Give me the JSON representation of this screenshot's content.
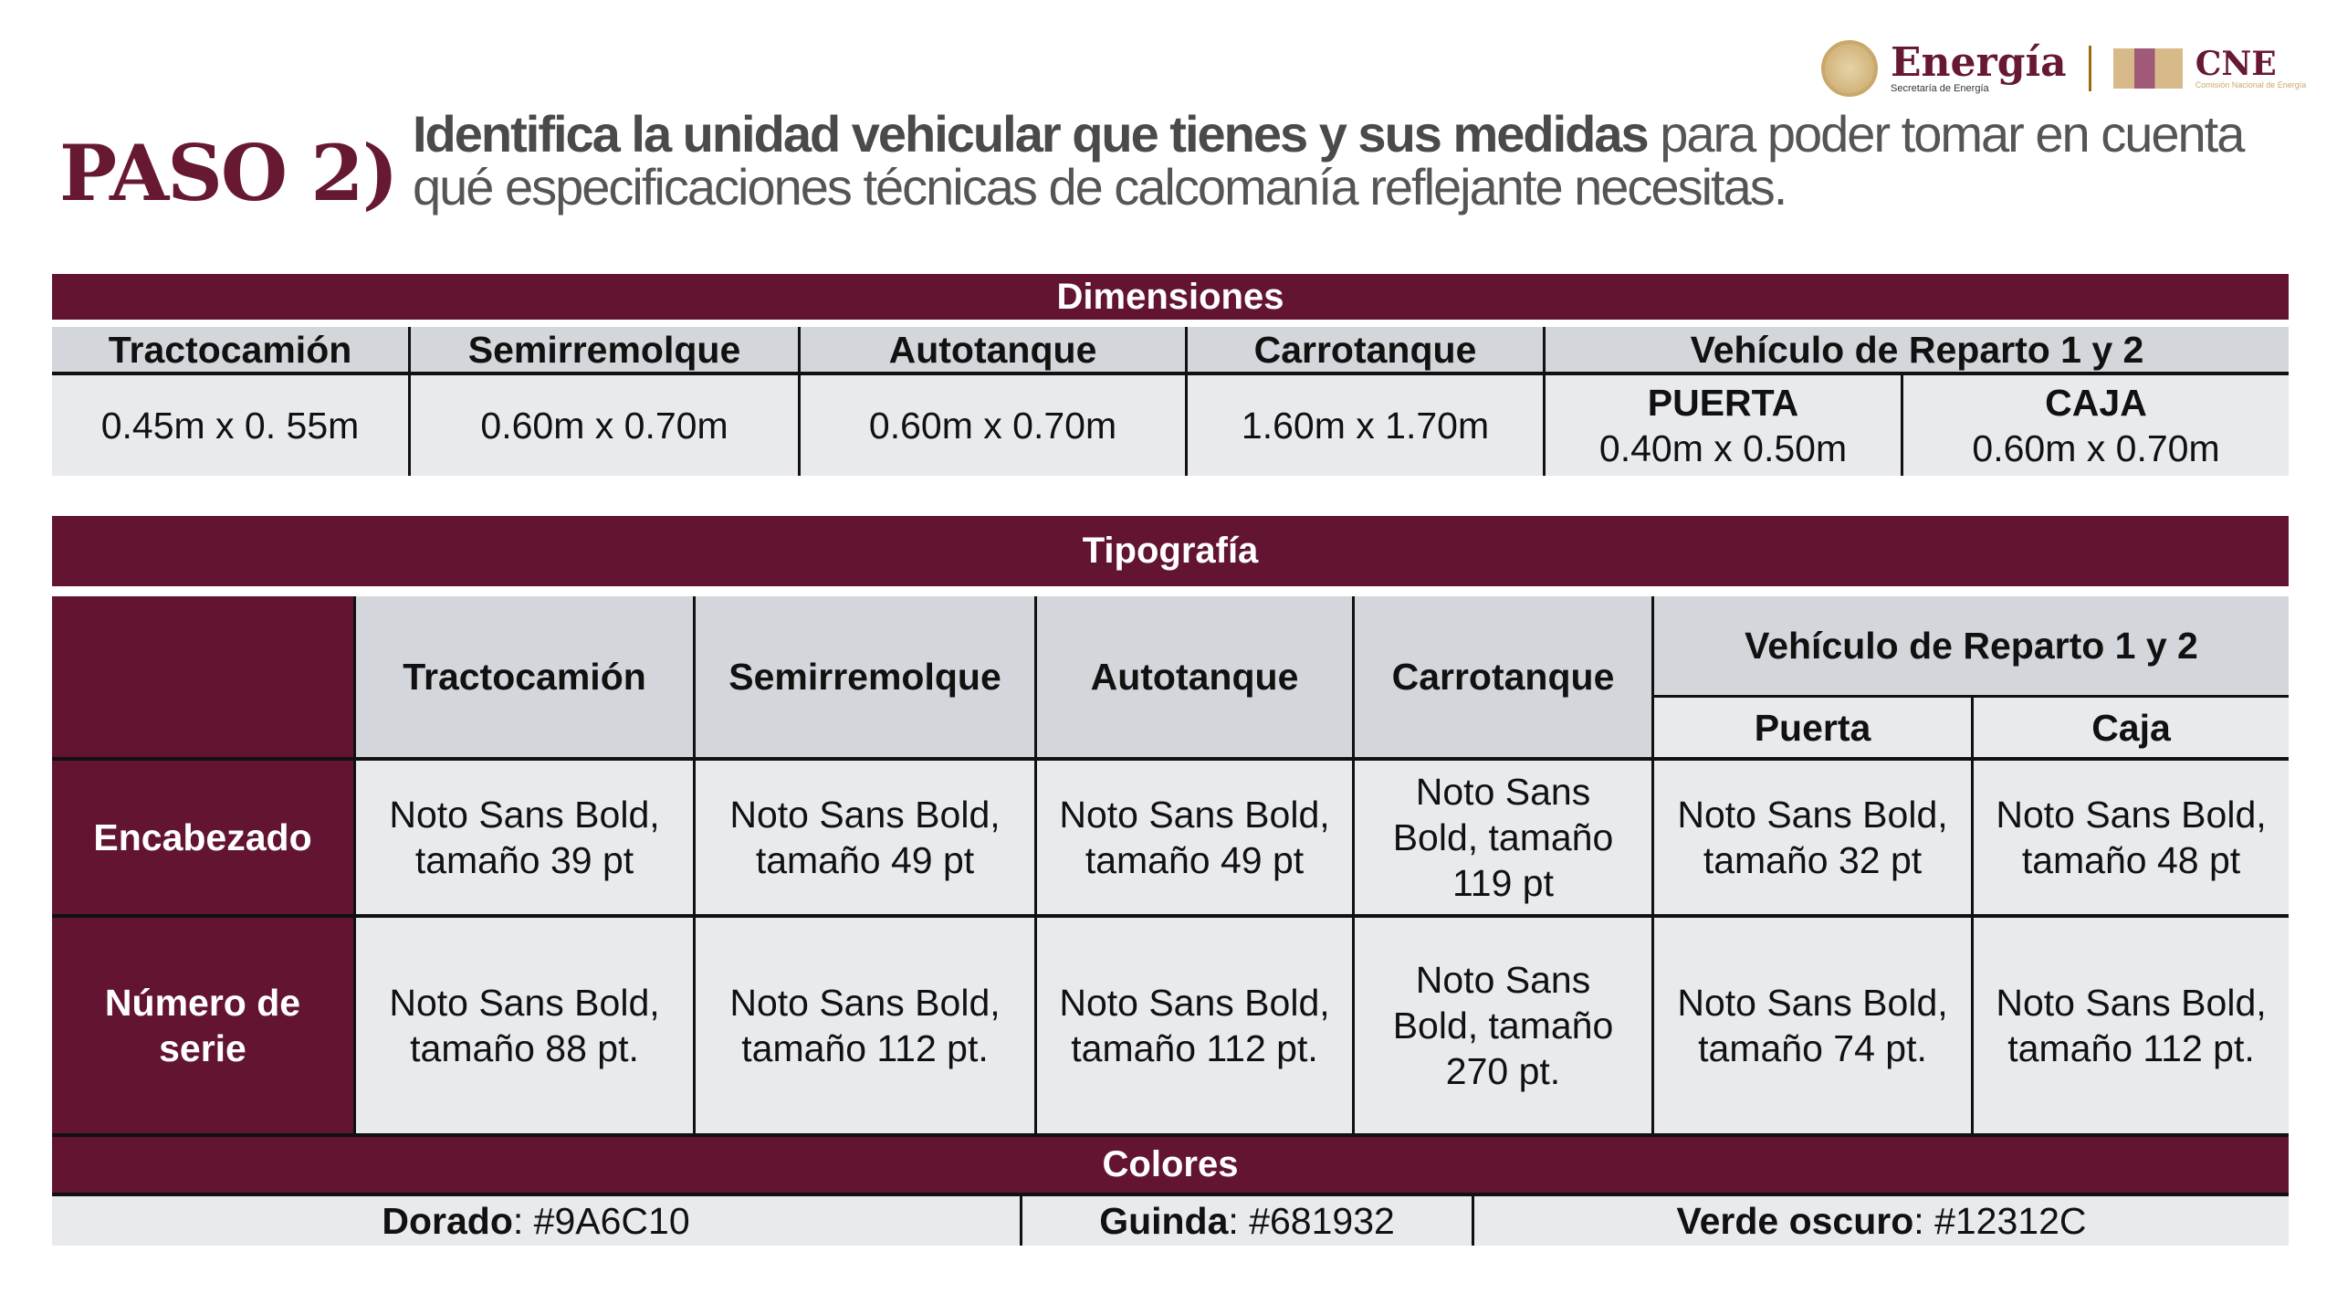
{
  "title": {
    "step": "PASO 2)",
    "bold": "Identifica la unidad vehicular que tienes y sus medidas",
    "rest": " para poder tomar en cuenta qué especificaciones técnicas de calcomanía reflejante necesitas."
  },
  "logos": {
    "energia": "Energía",
    "energia_sub": "Secretaría de Energía",
    "cne": "CNE",
    "cne_sub": "Comisión Nacional de Energía"
  },
  "dimensiones": {
    "title": "Dimensiones",
    "headers": [
      "Tractocamión",
      "Semirremolque",
      "Autotanque",
      "Carrotanque",
      "Vehículo de Reparto 1 y 2"
    ],
    "values": [
      "0.45m x 0. 55m",
      "0.60m x 0.70m",
      "0.60m x 0.70m",
      "1.60m x 1.70m"
    ],
    "puerta_label": "PUERTA",
    "puerta": "0.40m x 0.50m",
    "caja_label": "CAJA",
    "caja": "0.60m x 0.70m"
  },
  "tipografia": {
    "title": "Tipografía",
    "headers": [
      "Tractocamión",
      "Semirremolque",
      "Autotanque",
      "Carrotanque"
    ],
    "reparto": "Vehículo de Reparto 1 y 2",
    "puerta": "Puerta",
    "caja": "Caja",
    "rows": [
      {
        "label": "Encabezado",
        "cells": [
          "Noto Sans Bold, tamaño 39 pt",
          "Noto Sans Bold, tamaño 49 pt",
          "Noto Sans Bold, tamaño 49 pt",
          "Noto Sans Bold, tamaño 119 pt",
          "Noto Sans Bold, tamaño 32 pt",
          "Noto Sans Bold, tamaño 48 pt"
        ]
      },
      {
        "label": "Número de serie",
        "cells": [
          "Noto Sans Bold, tamaño 88 pt.",
          "Noto Sans Bold, tamaño 112 pt.",
          "Noto Sans Bold, tamaño 112 pt.",
          "Noto Sans Bold, tamaño 270 pt.",
          "Noto Sans Bold, tamaño 74 pt.",
          "Noto Sans Bold, tamaño 112 pt."
        ]
      }
    ]
  },
  "colores": {
    "title": "Colores",
    "items": [
      {
        "name": "Dorado",
        "value": ": #9A6C10",
        "hex": "#9A6C10"
      },
      {
        "name": "Guinda",
        "value": ": #681932",
        "hex": "#681932"
      },
      {
        "name": "Verde oscuro",
        "value": ": #12312C",
        "hex": "#12312C"
      }
    ]
  }
}
